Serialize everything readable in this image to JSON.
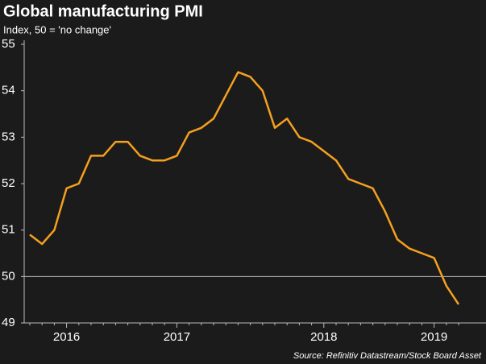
{
  "chart_data": {
    "type": "line",
    "title": "Global manufacturing PMI",
    "subtitle": "Index, 50 = 'no change'",
    "source": "Source: Refinitiv Datastream/Stock Board Asset",
    "categories": [
      null,
      null,
      null,
      "2016",
      null,
      null,
      null,
      null,
      null,
      null,
      null,
      null,
      "2017",
      null,
      null,
      null,
      null,
      null,
      null,
      null,
      null,
      null,
      null,
      null,
      "2018",
      null,
      null,
      null,
      null,
      null,
      null,
      null,
      null,
      "2019",
      null,
      null
    ],
    "series": [
      {
        "name": "Global manufacturing PMI",
        "color": "#f5a01e",
        "values": [
          50.9,
          50.7,
          51.0,
          51.9,
          52.0,
          52.6,
          52.6,
          52.9,
          52.9,
          52.6,
          52.5,
          52.5,
          52.6,
          53.1,
          53.2,
          53.4,
          53.9,
          54.4,
          54.3,
          54.0,
          53.2,
          53.4,
          53.0,
          52.9,
          52.7,
          52.5,
          52.1,
          52.0,
          51.9,
          51.4,
          50.8,
          50.6,
          50.5,
          50.4,
          49.8,
          49.4
        ]
      }
    ],
    "ylim": [
      49,
      55
    ],
    "yticks": [
      49,
      50,
      51,
      52,
      53,
      54,
      55
    ],
    "reference_line": 50,
    "grid": false
  }
}
